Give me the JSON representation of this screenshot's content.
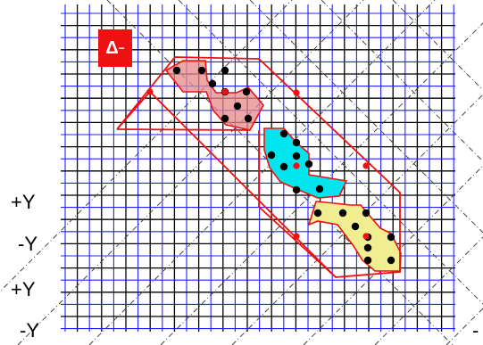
{
  "badge": {
    "symbol": "Δ",
    "superscript": "−"
  },
  "axis_labels": [
    {
      "id": "plus-y-1",
      "text": "+Y"
    },
    {
      "id": "minus-y-1",
      "text": "-Y"
    },
    {
      "id": "plus-y-2",
      "text": "+Y"
    },
    {
      "id": "minus-y-2",
      "text": "-Y"
    },
    {
      "id": "minus-right",
      "text": "-"
    }
  ],
  "colors": {
    "grid_blue": "#2222ff",
    "grid_black": "#000000",
    "outline_red": "#ee1111",
    "fill_red": "#e88a8a",
    "fill_cyan": "#00e5ee",
    "fill_yellow": "#f0ee90",
    "dot_black": "#000000",
    "dot_red": "#ee1111",
    "badge_bg": "#ee1111"
  }
}
